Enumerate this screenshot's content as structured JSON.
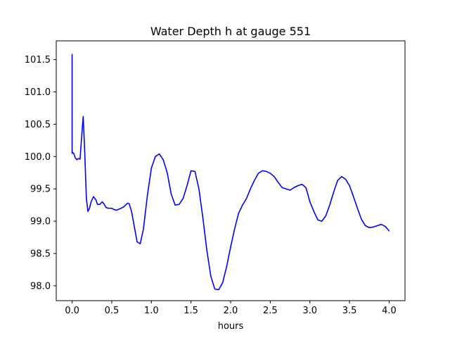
{
  "chart_data": {
    "type": "line",
    "title": "Water Depth h at gauge 551",
    "xlabel": "hours",
    "ylabel": "",
    "xlim": [
      -0.2,
      4.2
    ],
    "ylim": [
      97.77,
      101.79
    ],
    "xticks": [
      "0.0",
      "0.5",
      "1.0",
      "1.5",
      "2.0",
      "2.5",
      "3.0",
      "3.5",
      "4.0"
    ],
    "yticks": [
      "98.0",
      "98.5",
      "99.0",
      "99.5",
      "100.0",
      "100.5",
      "101.0",
      "101.5"
    ],
    "grid": false,
    "legend": "none",
    "series": [
      {
        "color": "#0000ff",
        "x": [
          0.0,
          0.0,
          0.0,
          0.02,
          0.04,
          0.06,
          0.08,
          0.1,
          0.12,
          0.14,
          0.16,
          0.18,
          0.2,
          0.22,
          0.24,
          0.27,
          0.3,
          0.32,
          0.35,
          0.38,
          0.4,
          0.43,
          0.46,
          0.5,
          0.53,
          0.56,
          0.6,
          0.65,
          0.7,
          0.72,
          0.75,
          0.78,
          0.82,
          0.86,
          0.9,
          0.95,
          1.0,
          1.05,
          1.1,
          1.15,
          1.2,
          1.25,
          1.3,
          1.35,
          1.4,
          1.45,
          1.5,
          1.55,
          1.6,
          1.65,
          1.7,
          1.75,
          1.8,
          1.85,
          1.9,
          1.95,
          2.0,
          2.05,
          2.1,
          2.15,
          2.2,
          2.25,
          2.3,
          2.35,
          2.4,
          2.45,
          2.5,
          2.55,
          2.6,
          2.65,
          2.7,
          2.75,
          2.8,
          2.85,
          2.9,
          2.95,
          3.0,
          3.05,
          3.1,
          3.15,
          3.2,
          3.25,
          3.3,
          3.35,
          3.4,
          3.45,
          3.5,
          3.55,
          3.6,
          3.65,
          3.7,
          3.75,
          3.8,
          3.85,
          3.9,
          3.95,
          4.0
        ],
        "y": [
          100.05,
          101.58,
          100.07,
          100.05,
          99.98,
          99.95,
          99.97,
          99.96,
          100.3,
          100.62,
          100.05,
          99.35,
          99.15,
          99.2,
          99.3,
          99.38,
          99.33,
          99.26,
          99.26,
          99.3,
          99.27,
          99.21,
          99.2,
          99.2,
          99.18,
          99.17,
          99.19,
          99.22,
          99.28,
          99.27,
          99.15,
          98.95,
          98.68,
          98.65,
          98.88,
          99.4,
          99.82,
          100.0,
          100.04,
          99.95,
          99.75,
          99.42,
          99.25,
          99.26,
          99.35,
          99.55,
          99.78,
          99.77,
          99.5,
          99.05,
          98.55,
          98.15,
          97.95,
          97.94,
          98.05,
          98.3,
          98.6,
          98.88,
          99.12,
          99.25,
          99.35,
          99.5,
          99.63,
          99.74,
          99.78,
          99.77,
          99.74,
          99.69,
          99.6,
          99.52,
          99.5,
          99.48,
          99.52,
          99.55,
          99.57,
          99.52,
          99.3,
          99.15,
          99.02,
          99.0,
          99.08,
          99.25,
          99.45,
          99.63,
          99.69,
          99.65,
          99.55,
          99.38,
          99.2,
          99.03,
          98.93,
          98.9,
          98.91,
          98.93,
          98.95,
          98.92,
          98.85
        ]
      }
    ]
  }
}
